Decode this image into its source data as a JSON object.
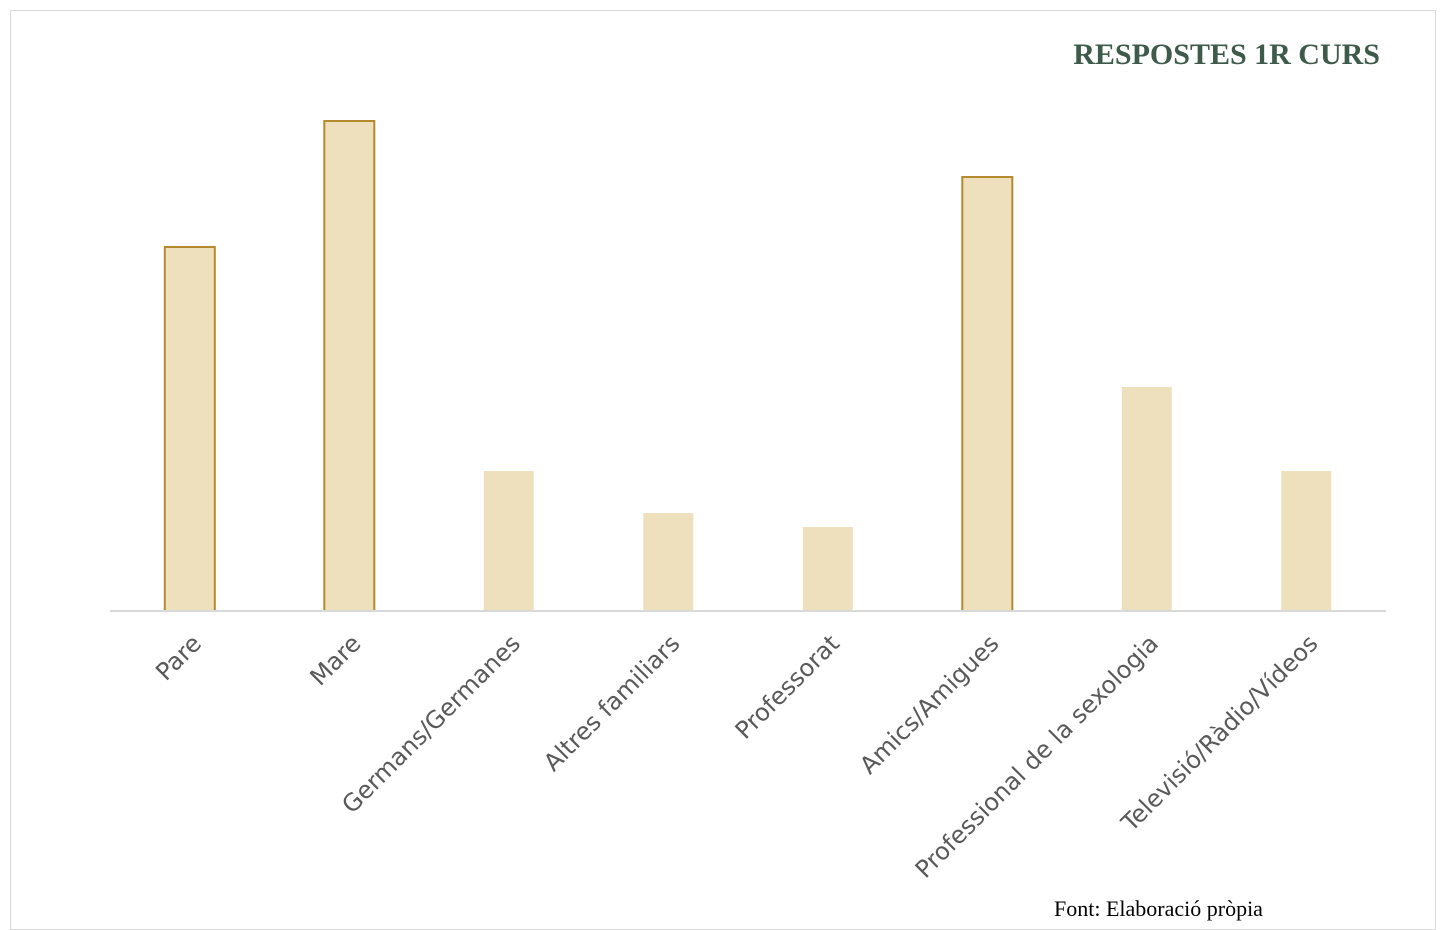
{
  "chart_data": {
    "type": "bar",
    "title": "RESPOSTES 1R CURS",
    "categories": [
      "Pare",
      "Mare",
      "Germans/Germanes",
      "Altres familiars",
      "Professorat",
      "Amics/Amigues",
      "Professional de la sexologia",
      "Televisió/Ràdio/Vídeos"
    ],
    "values": [
      26,
      35,
      10,
      7,
      6,
      31,
      16,
      10
    ],
    "highlighted": [
      true,
      true,
      false,
      false,
      false,
      true,
      false,
      false
    ],
    "xlabel": "",
    "ylabel": "",
    "ylim": [
      0,
      35
    ],
    "grid": false,
    "legend": "none",
    "colors": {
      "bar_fill": "#efe0bd",
      "bar_outline": "#b48a2c",
      "axis": "#d9d9d9",
      "title": "#3d5a4a",
      "tick_label": "#595959"
    }
  },
  "source_note": "Font: Elaboració pròpia"
}
